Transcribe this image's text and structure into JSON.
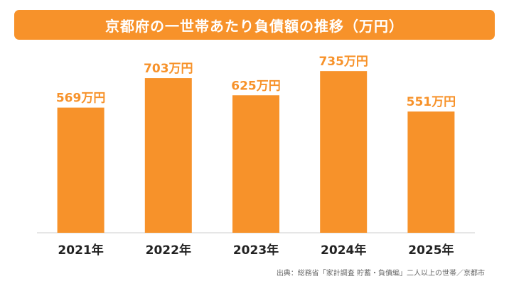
{
  "chart_data": {
    "type": "bar",
    "title": "京都府の一世帯あたり負債額の推移（万円）",
    "categories": [
      "2021年",
      "2022年",
      "2023年",
      "2024年",
      "2025年"
    ],
    "values": [
      569,
      703,
      625,
      735,
      551
    ],
    "value_labels": [
      "569万円",
      "703万円",
      "625万円",
      "735万円",
      "551万円"
    ],
    "unit": "万円",
    "ylim": [
      0,
      800
    ],
    "grid": false,
    "legend": "none",
    "bar_color": "#f7922a",
    "label_color": "#f7922a"
  },
  "footer": {
    "source": "出典：総務省「家計調査 貯蓄・負債編」二人以上の世帯／京都市"
  },
  "colors": {
    "accent": "#f7922a",
    "title_text": "#ffffff",
    "axis": "#cccccc"
  }
}
